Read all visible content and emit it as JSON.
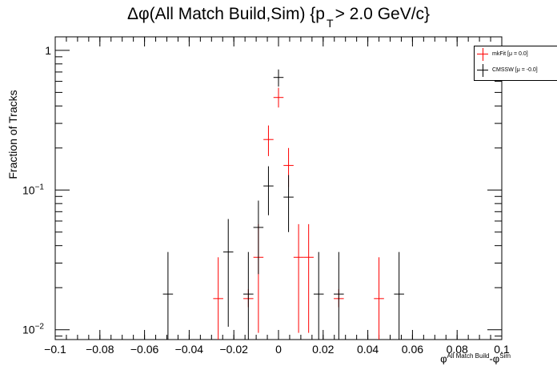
{
  "title": {
    "main": "Δφ(All Match Build,Sim) {p",
    "sub": "T",
    "tail": "> 2.0 GeV/c}"
  },
  "axes": {
    "ylabel": "Fraction of Tracks",
    "xlabel_main": "φ",
    "xlabel_sup1": "All Match Build",
    "xlabel_mid": "-φ",
    "xlabel_sup2": "Sim"
  },
  "legend": {
    "entries": [
      {
        "label": "mkFit  [μ = 0.0]",
        "color": "#ff0000"
      },
      {
        "label": "CMSSW  [μ = -0.0]",
        "color": "#000000"
      }
    ]
  },
  "chart_data": {
    "type": "scatter",
    "xlim": [
      -0.1,
      0.1
    ],
    "ylim": [
      0.0085,
      1.25
    ],
    "log_y": true,
    "bin_width": 0.0045,
    "x_ticks": [
      "−0.1",
      "−0.08",
      "−0.06",
      "−0.04",
      "−0.02",
      "0",
      "0.02",
      "0.04",
      "0.06",
      "0.08",
      "0.1"
    ],
    "x_tick_values": [
      -0.1,
      -0.08,
      -0.06,
      -0.04,
      -0.02,
      0,
      0.02,
      0.04,
      0.06,
      0.08,
      0.1
    ],
    "y_ticks": [
      {
        "value": 1,
        "base": "1",
        "exp": ""
      },
      {
        "value": 0.1,
        "base": "10",
        "exp": "−1"
      },
      {
        "value": 0.01,
        "base": "10",
        "exp": "−2"
      }
    ],
    "series": [
      {
        "name": "mkFit  [μ = 0.0]",
        "color": "#ff0000",
        "points": [
          {
            "x": -0.027,
            "y": 0.0167,
            "lo": 0.0085,
            "hi": 0.033
          },
          {
            "x": -0.0135,
            "y": 0.0167,
            "lo": 0.0145,
            "hi": 0.0195
          },
          {
            "x": -0.009,
            "y": 0.033,
            "lo": 0.0095,
            "hi": 0.057
          },
          {
            "x": -0.0045,
            "y": 0.23,
            "lo": 0.175,
            "hi": 0.29
          },
          {
            "x": 0.0,
            "y": 0.46,
            "lo": 0.39,
            "hi": 0.54
          },
          {
            "x": 0.0045,
            "y": 0.15,
            "lo": 0.105,
            "hi": 0.2
          },
          {
            "x": 0.009,
            "y": 0.033,
            "lo": 0.0095,
            "hi": 0.057
          },
          {
            "x": 0.0135,
            "y": 0.033,
            "lo": 0.0095,
            "hi": 0.057
          },
          {
            "x": 0.027,
            "y": 0.0167,
            "lo": 0.0145,
            "hi": 0.0195
          },
          {
            "x": 0.045,
            "y": 0.0167,
            "lo": 0.0085,
            "hi": 0.033
          }
        ]
      },
      {
        "name": "CMSSW  [μ = -0.0]",
        "color": "#000000",
        "points": [
          {
            "x": -0.0495,
            "y": 0.018,
            "lo": 0.0085,
            "hi": 0.036
          },
          {
            "x": -0.0225,
            "y": 0.036,
            "lo": 0.0105,
            "hi": 0.062
          },
          {
            "x": -0.0135,
            "y": 0.018,
            "lo": 0.0085,
            "hi": 0.036
          },
          {
            "x": -0.009,
            "y": 0.054,
            "lo": 0.025,
            "hi": 0.084
          },
          {
            "x": -0.0045,
            "y": 0.107,
            "lo": 0.066,
            "hi": 0.148
          },
          {
            "x": 0.0,
            "y": 0.64,
            "lo": 0.55,
            "hi": 0.73
          },
          {
            "x": 0.0045,
            "y": 0.089,
            "lo": 0.05,
            "hi": 0.128
          },
          {
            "x": 0.018,
            "y": 0.018,
            "lo": 0.0085,
            "hi": 0.036
          },
          {
            "x": 0.027,
            "y": 0.018,
            "lo": 0.0085,
            "hi": 0.036
          },
          {
            "x": 0.054,
            "y": 0.018,
            "lo": 0.0085,
            "hi": 0.036
          }
        ]
      }
    ]
  }
}
